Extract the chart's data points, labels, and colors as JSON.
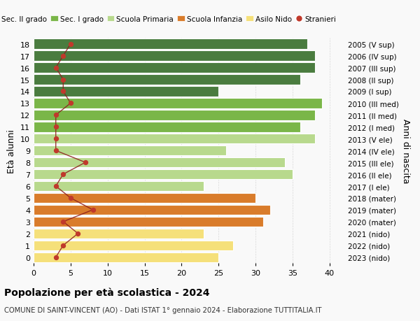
{
  "ages": [
    18,
    17,
    16,
    15,
    14,
    13,
    12,
    11,
    10,
    9,
    8,
    7,
    6,
    5,
    4,
    3,
    2,
    1,
    0
  ],
  "years": [
    "2005 (V sup)",
    "2006 (IV sup)",
    "2007 (III sup)",
    "2008 (II sup)",
    "2009 (I sup)",
    "2010 (III med)",
    "2011 (II med)",
    "2012 (I med)",
    "2013 (V ele)",
    "2014 (IV ele)",
    "2015 (III ele)",
    "2016 (II ele)",
    "2017 (I ele)",
    "2018 (mater)",
    "2019 (mater)",
    "2020 (mater)",
    "2021 (nido)",
    "2022 (nido)",
    "2023 (nido)"
  ],
  "bar_values": [
    37,
    38,
    38,
    36,
    25,
    39,
    38,
    36,
    38,
    26,
    34,
    35,
    23,
    30,
    32,
    31,
    23,
    27,
    25
  ],
  "stranieri": [
    5,
    4,
    3,
    4,
    4,
    5,
    3,
    3,
    3,
    3,
    7,
    4,
    3,
    5,
    8,
    4,
    6,
    4,
    3
  ],
  "bar_colors": [
    "#4a7c3f",
    "#4a7c3f",
    "#4a7c3f",
    "#4a7c3f",
    "#4a7c3f",
    "#7ab648",
    "#7ab648",
    "#7ab648",
    "#b8d98d",
    "#b8d98d",
    "#b8d98d",
    "#b8d98d",
    "#b8d98d",
    "#d97c2b",
    "#d97c2b",
    "#d97c2b",
    "#f5e07a",
    "#f5e07a",
    "#f5e07a"
  ],
  "legend_labels": [
    "Sec. II grado",
    "Sec. I grado",
    "Scuola Primaria",
    "Scuola Infanzia",
    "Asilo Nido",
    "Stranieri"
  ],
  "legend_colors": [
    "#4a7c3f",
    "#7ab648",
    "#b8d98d",
    "#d97c2b",
    "#f5e07a",
    "#c0392b"
  ],
  "stranieri_color": "#c0392b",
  "stranieri_line_color": "#8b1a1a",
  "title": "Popolazione per età scolastica - 2024",
  "subtitle": "COMUNE DI SAINT-VINCENT (AO) - Dati ISTAT 1° gennaio 2024 - Elaborazione TUTTITALIA.IT",
  "ylabel_left": "Età alunni",
  "ylabel_right": "Anni di nascita",
  "xlabel": "",
  "xlim": [
    0,
    42
  ],
  "bg_color": "#f9f9f9",
  "grid_color": "#cccccc"
}
